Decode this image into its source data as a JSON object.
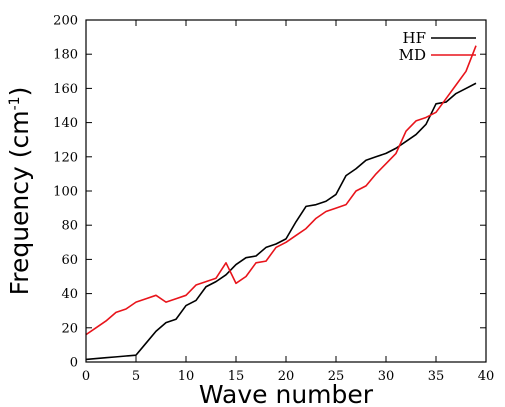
{
  "chart_data": {
    "type": "line",
    "xlabel": "Wave number",
    "ylabel": "Frequency (cm",
    "ylabel_sup": "-1",
    "ylabel_suffix": ")",
    "xlim": [
      0,
      40
    ],
    "ylim": [
      0,
      200
    ],
    "x_ticks": [
      0,
      5,
      10,
      15,
      20,
      25,
      30,
      35,
      40
    ],
    "y_ticks": [
      0,
      20,
      40,
      60,
      80,
      100,
      120,
      140,
      160,
      180,
      200
    ],
    "grid": false,
    "legend_position": "top-right",
    "series": [
      {
        "name": "HF",
        "color": "#000000",
        "x": [
          0,
          1,
          2,
          3,
          4,
          5,
          6,
          7,
          8,
          9,
          10,
          11,
          12,
          13,
          14,
          15,
          16,
          17,
          18,
          19,
          20,
          21,
          22,
          23,
          24,
          25,
          26,
          27,
          28,
          29,
          30,
          31,
          32,
          33,
          34,
          35,
          36,
          37,
          38,
          39
        ],
        "values": [
          1.5,
          2,
          2.5,
          3,
          3.5,
          4,
          11,
          18,
          23,
          25,
          33,
          36,
          44,
          47,
          51,
          57,
          61,
          62,
          67,
          69,
          72,
          82,
          91,
          92,
          94,
          98,
          109,
          113,
          118,
          120,
          122,
          125,
          129,
          133,
          139,
          151,
          152,
          157,
          160,
          163
        ]
      },
      {
        "name": "MD",
        "color": "#e8141b",
        "x": [
          0,
          1,
          2,
          3,
          4,
          5,
          6,
          7,
          8,
          9,
          10,
          11,
          12,
          13,
          14,
          15,
          16,
          17,
          18,
          19,
          20,
          21,
          22,
          23,
          24,
          25,
          26,
          27,
          28,
          29,
          30,
          31,
          32,
          33,
          34,
          35,
          36,
          37,
          38,
          39
        ],
        "values": [
          16,
          20,
          24,
          29,
          31,
          35,
          37,
          39,
          35,
          37,
          39,
          45,
          47,
          49,
          58,
          46,
          50,
          58,
          59,
          67,
          70,
          74,
          78,
          84,
          88,
          90,
          92,
          100,
          103,
          110,
          116,
          122,
          135,
          141,
          143,
          146,
          154,
          162,
          170,
          185
        ]
      }
    ]
  }
}
